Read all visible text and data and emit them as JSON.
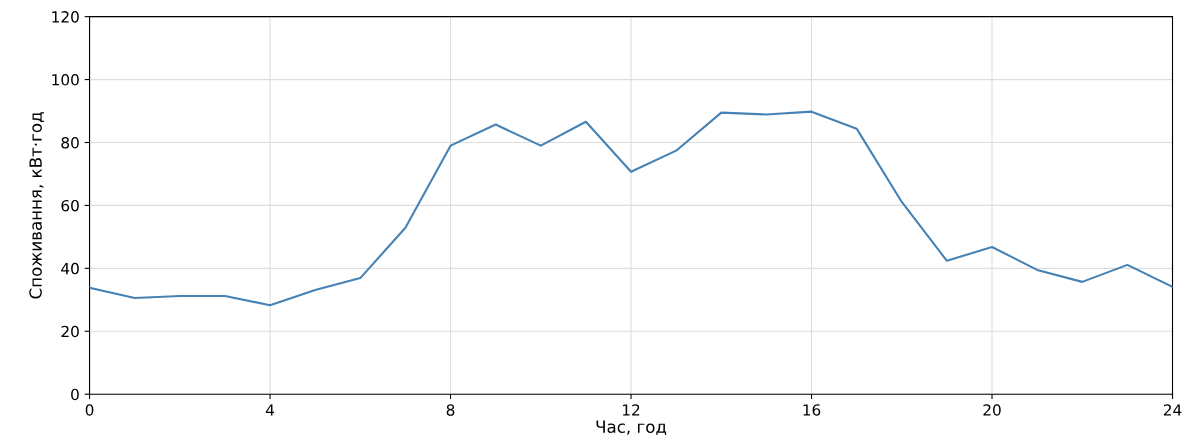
{
  "chart_data": {
    "type": "line",
    "xlabel": "Час, год",
    "ylabel": "Споживання, кВт·год",
    "x": [
      0,
      1,
      2,
      3,
      4,
      5,
      6,
      7,
      8,
      9,
      10,
      11,
      12,
      13,
      14,
      15,
      16,
      17,
      18,
      19,
      20,
      21,
      22,
      23,
      24
    ],
    "series": [
      {
        "color": "#4682b4",
        "values": [
          33.8,
          30.6,
          31.2,
          31.2,
          28.3,
          33.1,
          36.9,
          52.9,
          79.0,
          85.7,
          79.0,
          86.6,
          70.7,
          77.4,
          89.5,
          88.9,
          89.8,
          84.4,
          61.1,
          42.4,
          46.8,
          39.5,
          35.7,
          41.1,
          34.1
        ]
      }
    ],
    "xlim": [
      0,
      24
    ],
    "ylim": [
      0,
      120
    ],
    "xticks": [
      0,
      4,
      8,
      12,
      16,
      20,
      24
    ],
    "yticks": [
      0,
      20,
      40,
      60,
      80,
      100,
      120
    ],
    "grid": true,
    "marker": "none",
    "line_style": "solid",
    "legend": false
  }
}
